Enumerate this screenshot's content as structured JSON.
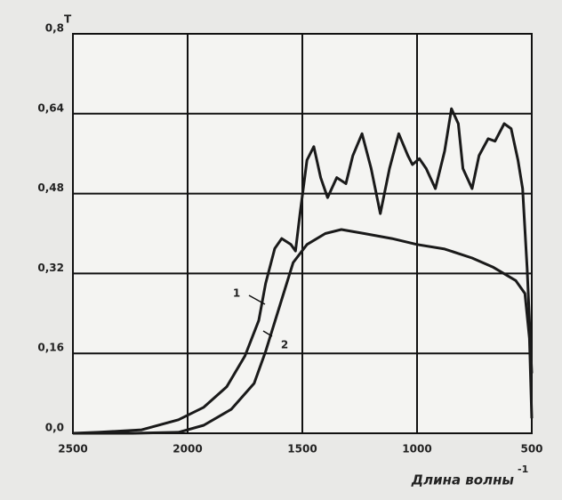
{
  "chart_data": {
    "type": "line",
    "ylabel": "T",
    "xlabel": "Длина волны",
    "xlabel_sup": "-1",
    "xlim": [
      2500,
      500
    ],
    "xticks": [
      2500,
      2000,
      1500,
      1000,
      500
    ],
    "ylim": [
      0,
      0.8
    ],
    "yticks": [
      {
        "value": 0,
        "label": "0,0"
      },
      {
        "value": 0.16,
        "label": "0,16"
      },
      {
        "value": 0.32,
        "label": "0,32"
      },
      {
        "value": 0.48,
        "label": "0,48"
      },
      {
        "value": 0.64,
        "label": "0,64"
      },
      {
        "value": 0.8,
        "label": "0,8"
      }
    ],
    "grid": true,
    "series": [
      {
        "name": "1",
        "color": "#1a1a1a",
        "x": [
          2500,
          2390,
          2200,
          2040,
          1930,
          1830,
          1750,
          1690,
          1660,
          1620,
          1590,
          1550,
          1530,
          1510,
          1480,
          1450,
          1420,
          1390,
          1350,
          1310,
          1280,
          1240,
          1200,
          1160,
          1120,
          1080,
          1040,
          1020,
          990,
          960,
          920,
          880,
          850,
          820,
          800,
          760,
          730,
          690,
          660,
          620,
          590,
          560,
          540,
          520,
          500
        ],
        "values": [
          0,
          0.002,
          0.007,
          0.027,
          0.052,
          0.093,
          0.155,
          0.226,
          0.3,
          0.37,
          0.39,
          0.378,
          0.365,
          0.44,
          0.547,
          0.574,
          0.512,
          0.472,
          0.512,
          0.5,
          0.556,
          0.6,
          0.53,
          0.44,
          0.53,
          0.6,
          0.556,
          0.538,
          0.55,
          0.53,
          0.49,
          0.565,
          0.65,
          0.62,
          0.53,
          0.49,
          0.556,
          0.59,
          0.585,
          0.62,
          0.61,
          0.547,
          0.49,
          0.33,
          0.12
        ]
      },
      {
        "name": "2",
        "color": "#1a1a1a",
        "x": [
          2500,
          2240,
          2040,
          1930,
          1810,
          1710,
          1660,
          1600,
          1540,
          1480,
          1400,
          1330,
          1230,
          1110,
          1000,
          880,
          760,
          670,
          570,
          530,
          510,
          500
        ],
        "values": [
          0,
          0,
          0.002,
          0.016,
          0.048,
          0.1,
          0.164,
          0.253,
          0.342,
          0.378,
          0.4,
          0.408,
          0.4,
          0.39,
          0.378,
          0.369,
          0.351,
          0.333,
          0.306,
          0.28,
          0.19,
          0.03
        ]
      }
    ]
  }
}
